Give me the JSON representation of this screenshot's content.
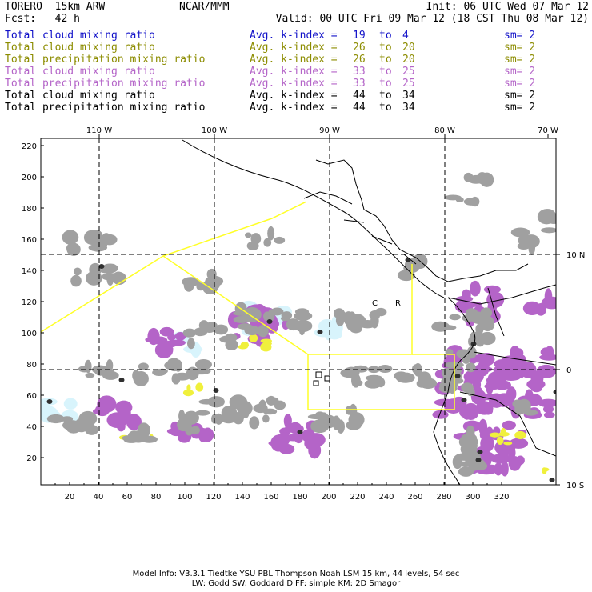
{
  "header": {
    "model": "TORERO  15km ARW",
    "org": "NCAR/MMM",
    "init": "Init: 06 UTC Wed 07 Mar 12",
    "fcst": "Fcst:   42 h",
    "valid": "Valid: 00 UTC Fri 09 Mar 12 (18 CST Thu 08 Mar 12)"
  },
  "legend": [
    {
      "field": "Total cloud mixing ratio",
      "index": "Avg. k-index =",
      "hi": "19",
      "to": "to",
      "lo": "4",
      "sm": "sm= 2",
      "color": "#1010c8"
    },
    {
      "field": "Total cloud mixing ratio",
      "index": "Avg. k-index =",
      "hi": "26",
      "to": "to",
      "lo": "20",
      "sm": "sm= 2",
      "color": "#8c8c00"
    },
    {
      "field": "Total precipitation mixing ratio",
      "index": "Avg. k-index =",
      "hi": "26",
      "to": "to",
      "lo": "20",
      "sm": "sm= 2",
      "color": "#8c8c00"
    },
    {
      "field": "Total cloud mixing ratio",
      "index": "Avg. k-index =",
      "hi": "33",
      "to": "to",
      "lo": "25",
      "sm": "sm= 2",
      "color": "#b464c8"
    },
    {
      "field": "Total precipitation mixing ratio",
      "index": "Avg. k-index =",
      "hi": "33",
      "to": "to",
      "lo": "25",
      "sm": "sm= 2",
      "color": "#b464c8"
    },
    {
      "field": "Total cloud mixing ratio",
      "index": "Avg. k-index =",
      "hi": "44",
      "to": "to",
      "lo": "34",
      "sm": "sm= 2",
      "color": "#000000"
    },
    {
      "field": "Total precipitation mixing ratio",
      "index": "Avg. k-index =",
      "hi": "44",
      "to": "to",
      "lo": "34",
      "sm": "sm= 2",
      "color": "#000000"
    }
  ],
  "map": {
    "lon_labels": [
      "110 W",
      "100 W",
      "90 W",
      "80 W",
      "70 W"
    ],
    "lat_labels": [
      "10 N",
      "0",
      "10 S"
    ],
    "x_ticks": [
      "20",
      "40",
      "60",
      "80",
      "100",
      "120",
      "140",
      "160",
      "180",
      "200",
      "220",
      "240",
      "260",
      "280",
      "300",
      "320"
    ],
    "y_ticks": [
      "220",
      "200",
      "180",
      "160",
      "140",
      "120",
      "100",
      "80",
      "60",
      "40",
      "20"
    ],
    "box_labels": [
      "I",
      "C",
      "R"
    ],
    "colors": {
      "cloud_light": "#d8f4fc",
      "cloud_gray": "#a0a0a0",
      "cloud_dark": "#303030",
      "precip_purple": "#b464c8",
      "precip_yellow": "#f0f03c",
      "box_line": "#ffff28"
    }
  },
  "footer": {
    "line1": "Model Info: V3.3.1   Tiedtke YSU PBL  Thompson    Noah LSM  15 km,   44 levels,   54 sec",
    "line2": "LW: Godd SW: Goddard DIFF: simple KM: 2D Smagor"
  }
}
